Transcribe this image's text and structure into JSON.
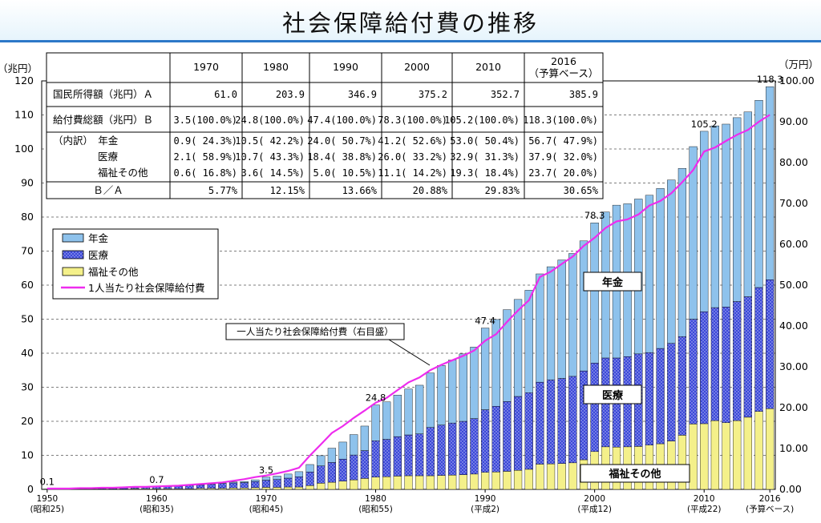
{
  "title": "社会保障給付費の推移",
  "axis": {
    "left_unit": "（兆円）",
    "right_unit": "（万円）"
  },
  "table": {
    "headers": [
      "",
      "1970",
      "1980",
      "1990",
      "2000",
      "2010",
      "2016"
    ],
    "header_note_2016": "（予算ベース）",
    "rows": [
      [
        "国民所得額（兆円）Ａ",
        "61.0",
        "203.9",
        "346.9",
        "375.2",
        "352.7",
        "385.9"
      ],
      [
        "給付費総額（兆円）Ｂ",
        "3.5(100.0%)",
        "24.8(100.0%)",
        "47.4(100.0%)",
        "78.3(100.0%)",
        "105.2(100.0%)",
        "118.3(100.0%)"
      ],
      [
        "（内訳）　年金",
        "0.9( 24.3%)",
        "10.5( 42.2%)",
        "24.0( 50.7%)",
        "41.2( 52.6%)",
        "53.0( 50.4%)",
        "56.7( 47.9%)"
      ],
      [
        "医療",
        "2.1( 58.9%)",
        "10.7( 43.3%)",
        "18.4( 38.8%)",
        "26.0( 33.2%)",
        "32.9( 31.3%)",
        "37.9( 32.0%)"
      ],
      [
        "福祉その他",
        "0.6( 16.8%)",
        "3.6( 14.5%)",
        "5.0( 10.5%)",
        "11.1( 14.2%)",
        "19.3( 18.4%)",
        "23.7( 20.0%)"
      ],
      [
        "Ｂ／Ａ",
        "5.77%",
        "12.15%",
        "13.66%",
        "20.88%",
        "29.83%",
        "30.65%"
      ]
    ]
  },
  "legend": {
    "pension": "年金",
    "medical": "医療",
    "welfare": "福祉その他",
    "per_capita": "1人当たり社会保障給付費"
  },
  "annotations": {
    "per_capita_callout": "一人当たり社会保障給付費（右目盛）",
    "inner_pension": "年金",
    "inner_medical": "医療",
    "inner_welfare": "福祉その他"
  },
  "colors": {
    "pension": "#8ec2ec",
    "medical": "#3c48d8",
    "welfare": "#f4f08a",
    "line": "#ee2cee"
  },
  "chart_data": {
    "type": "bar",
    "stacked": true,
    "x_start": 1950,
    "x_end": 2016,
    "ylim": [
      0,
      120
    ],
    "y_ticks": [
      0,
      10,
      20,
      30,
      40,
      50,
      60,
      70,
      80,
      90,
      100,
      110,
      120
    ],
    "y2lim": [
      0,
      100
    ],
    "y2_ticks": [
      "0.00",
      "10.00",
      "20.00",
      "30.00",
      "40.00",
      "50.00",
      "60.00",
      "70.00",
      "80.00",
      "90.00",
      "100.00"
    ],
    "x_tick_labels": [
      {
        "year": 1950,
        "label": "1950",
        "sub": "(昭和25)"
      },
      {
        "year": 1960,
        "label": "1960",
        "sub": "(昭和35)"
      },
      {
        "year": 1970,
        "label": "1970",
        "sub": "(昭和45)"
      },
      {
        "year": 1980,
        "label": "1980",
        "sub": "(昭和55)"
      },
      {
        "year": 1990,
        "label": "1990",
        "sub": "(平成2)"
      },
      {
        "year": 2000,
        "label": "2000",
        "sub": "(平成12)"
      },
      {
        "year": 2010,
        "label": "2010",
        "sub": "(平成22)"
      },
      {
        "year": 2016,
        "label": "2016",
        "sub": "(予算ベース)"
      }
    ],
    "total_labels": [
      {
        "year": 1950,
        "text": "0.1",
        "value": 0.1
      },
      {
        "year": 1960,
        "text": "0.7",
        "value": 0.7
      },
      {
        "year": 1970,
        "text": "3.5",
        "value": 3.5
      },
      {
        "year": 1980,
        "text": "24.8",
        "value": 24.8
      },
      {
        "year": 1990,
        "text": "47.4",
        "value": 47.4
      },
      {
        "year": 2000,
        "text": "78.3",
        "value": 78.3
      },
      {
        "year": 2010,
        "text": "105.2",
        "value": 105.2
      },
      {
        "year": 2016,
        "text": "118.3",
        "value": 118.3
      }
    ],
    "series": [
      {
        "name": "年金",
        "values": [
          0.0,
          0.0,
          0.0,
          0.0,
          0.0,
          0.1,
          0.1,
          0.1,
          0.1,
          0.1,
          0.1,
          0.1,
          0.1,
          0.2,
          0.2,
          0.2,
          0.2,
          0.3,
          0.3,
          0.5,
          0.9,
          1.0,
          1.2,
          1.5,
          2.2,
          3.0,
          4.2,
          5.0,
          6.0,
          7.2,
          10.5,
          11.0,
          12.2,
          13.5,
          14.3,
          16.0,
          17.5,
          18.5,
          19.8,
          21.0,
          24.0,
          25.5,
          27.0,
          28.5,
          30.1,
          31.8,
          33.2,
          34.8,
          36.1,
          38.2,
          41.2,
          42.9,
          44.9,
          44.9,
          45.5,
          46.2,
          47.0,
          48.0,
          49.4,
          50.7,
          53.0,
          53.4,
          53.7,
          54.0,
          54.3,
          55.0,
          56.7
        ]
      },
      {
        "name": "医療",
        "values": [
          0.1,
          0.1,
          0.1,
          0.1,
          0.1,
          0.2,
          0.3,
          0.3,
          0.3,
          0.4,
          0.5,
          0.6,
          0.7,
          0.9,
          1.0,
          1.2,
          1.4,
          1.5,
          1.6,
          1.8,
          2.1,
          2.3,
          2.6,
          3.0,
          4.0,
          5.1,
          5.8,
          6.5,
          7.3,
          8.2,
          10.7,
          11.0,
          11.6,
          12.0,
          12.3,
          14.2,
          14.8,
          15.3,
          15.7,
          16.3,
          18.4,
          19.3,
          20.5,
          21.7,
          22.5,
          24.1,
          24.7,
          25.0,
          25.4,
          26.1,
          26.0,
          26.1,
          26.2,
          26.5,
          27.2,
          27.2,
          28.0,
          28.7,
          29.0,
          30.8,
          32.9,
          33.2,
          34.0,
          35.0,
          35.4,
          36.4,
          37.9
        ]
      },
      {
        "name": "福祉その他",
        "values": [
          0.0,
          0.0,
          0.1,
          0.1,
          0.1,
          0.1,
          0.1,
          0.1,
          0.2,
          0.2,
          0.2,
          0.2,
          0.2,
          0.2,
          0.3,
          0.3,
          0.3,
          0.4,
          0.4,
          0.5,
          0.6,
          0.6,
          0.7,
          0.7,
          1.1,
          1.8,
          2.1,
          2.4,
          2.8,
          3.2,
          3.6,
          3.7,
          3.9,
          4.0,
          4.0,
          4.0,
          4.1,
          4.2,
          4.3,
          4.5,
          5.0,
          5.1,
          5.3,
          5.6,
          5.9,
          7.4,
          7.5,
          7.6,
          7.8,
          8.7,
          11.1,
          12.5,
          12.4,
          12.5,
          12.6,
          13.0,
          13.4,
          14.2,
          15.9,
          19.2,
          19.3,
          20.2,
          19.6,
          20.2,
          21.2,
          22.9,
          23.7
        ]
      }
    ],
    "per_capita_line": {
      "name": "1人当たり社会保障給付費",
      "values": [
        0.2,
        0.2,
        0.2,
        0.3,
        0.3,
        0.4,
        0.4,
        0.5,
        0.6,
        0.6,
        0.7,
        0.8,
        0.9,
        1.1,
        1.3,
        1.5,
        1.7,
        2.1,
        2.5,
        3.0,
        3.4,
        3.9,
        4.5,
        5.3,
        8.3,
        11.0,
        13.8,
        15.5,
        17.5,
        19.3,
        21.2,
        22.4,
        24.3,
        26.2,
        27.4,
        29.2,
        30.5,
        31.6,
        32.7,
        34.0,
        36.4,
        38.0,
        41.0,
        43.8,
        46.3,
        52.0,
        53.3,
        55.2,
        57.0,
        59.6,
        61.6,
        64.0,
        65.6,
        66.1,
        67.3,
        69.5,
        70.6,
        72.5,
        75.2,
        78.2,
        82.7,
        83.7,
        85.3,
        86.8,
        88.0,
        90.0,
        91.7
      ]
    }
  }
}
